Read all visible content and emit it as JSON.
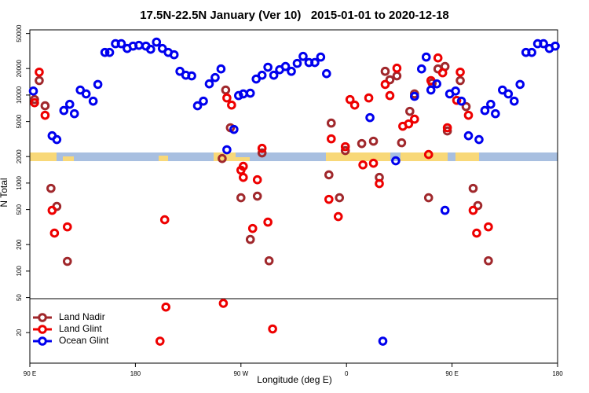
{
  "chart_data": {
    "type": "scatter",
    "title": "17.5N-22.5N January (Ver 10)   2015-01-01 to 2020-12-18",
    "x_label": "Longitude (deg E)",
    "y_label": "N Total",
    "log_y": true,
    "legend": "bottom-left",
    "xlim": [
      90,
      540
    ],
    "ylim": [
      9,
      55000
    ],
    "xticks": [
      {
        "value": 90,
        "label": "90 E"
      },
      180,
      {
        "value": 270,
        "label": "90 W"
      },
      {
        "value": 360,
        "label": "0"
      },
      {
        "value": 450,
        "label": "90 E"
      },
      {
        "value": 540,
        "label": "180"
      }
    ],
    "yticks": [
      20,
      50,
      100,
      200,
      500,
      1000,
      2000,
      5000,
      10000,
      20000,
      50000
    ],
    "series": [
      {
        "name": "Land Nadir",
        "color": "#a0282c",
        "x": [
          94,
          98,
          103,
          108,
          113,
          122,
          257,
          254,
          261,
          270,
          278,
          284,
          288,
          294,
          345,
          347,
          354,
          359,
          373,
          383,
          388,
          393,
          397,
          403,
          407,
          414,
          418,
          430,
          433,
          438,
          444,
          446,
          457,
          462,
          468,
          472,
          481
        ],
        "values": [
          8890,
          14600,
          7550,
          871,
          543,
          129,
          11400,
          1900,
          4250,
          681,
          229,
          710,
          2200,
          131,
          1240,
          4800,
          681,
          2340,
          2810,
          2990,
          1160,
          18600,
          14900,
          16500,
          2870,
          6530,
          10300,
          681,
          13700,
          19800,
          21100,
          3910,
          14600,
          7390,
          871,
          555,
          131
        ]
      },
      {
        "name": "Land Glint",
        "color": "#ee0000",
        "x": [
          94,
          98,
          103,
          109,
          111,
          122,
          205,
          206,
          201,
          255,
          258,
          262,
          270,
          272,
          272,
          280,
          284,
          288,
          293,
          297,
          345,
          347,
          353,
          359,
          363,
          367,
          374,
          379,
          383,
          388,
          393,
          397,
          403,
          408,
          413,
          418,
          430,
          432,
          438,
          442,
          446,
          454,
          457,
          464,
          468,
          471,
          481
        ],
        "values": [
          8180,
          18200,
          5890,
          490,
          270,
          318,
          383,
          39,
          16,
          43,
          9270,
          7690,
          1400,
          1550,
          1160,
          305,
          1090,
          2480,
          360,
          22,
          653,
          3180,
          416,
          2590,
          8890,
          7690,
          1610,
          9270,
          1680,
          986,
          13200,
          9860,
          20200,
          4420,
          4700,
          5320,
          2110,
          14600,
          26400,
          17900,
          4250,
          8710,
          18200,
          5890,
          490,
          270,
          318
        ]
      },
      {
        "name": "Ocean Glint",
        "color": "#0000ee",
        "x": [
          93,
          109,
          113,
          119,
          124,
          128,
          133,
          138,
          144,
          148,
          154,
          158,
          163,
          168,
          173,
          178,
          183,
          189,
          193,
          198,
          203,
          208,
          213,
          218,
          223,
          228,
          233,
          238,
          243,
          248,
          253,
          258,
          264,
          268,
          272,
          278,
          283,
          288,
          293,
          298,
          303,
          308,
          313,
          318,
          323,
          328,
          333,
          338,
          343,
          380,
          391,
          402,
          418,
          424,
          428,
          432,
          437,
          444,
          448,
          453,
          458,
          464,
          473,
          478,
          483,
          487,
          493,
          498,
          503,
          508,
          513,
          518,
          523,
          528,
          533,
          538
        ],
        "values": [
          11100,
          3450,
          3120,
          6670,
          7850,
          6140,
          11400,
          10300,
          8530,
          13200,
          30500,
          30500,
          38300,
          38300,
          33800,
          36000,
          36700,
          36000,
          33100,
          39900,
          33800,
          30500,
          28700,
          18600,
          16800,
          16500,
          7550,
          8530,
          13400,
          15800,
          19800,
          2390,
          4070,
          9860,
          10300,
          10500,
          15200,
          16800,
          20700,
          16800,
          19400,
          21100,
          18600,
          22900,
          27500,
          23400,
          23400,
          27000,
          17500,
          5540,
          16,
          1790,
          9660,
          19800,
          27000,
          11400,
          13400,
          490,
          10300,
          11100,
          8530,
          3450,
          3120,
          6670,
          7850,
          6140,
          11400,
          10300,
          8530,
          13200,
          30500,
          30500,
          38300,
          38300,
          33800,
          36000
        ]
      }
    ]
  }
}
